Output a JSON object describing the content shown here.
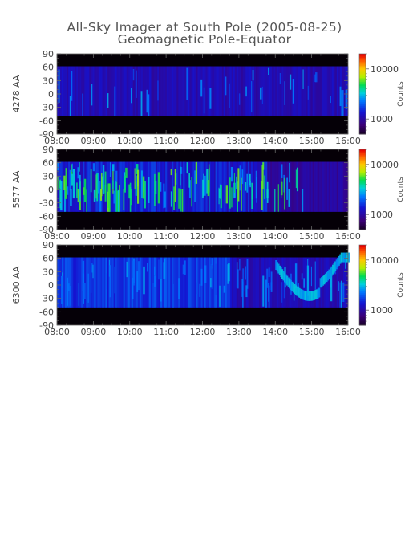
{
  "title": "All-Sky Imager at South Pole (2005-08-25)",
  "subtitle": "Geomagnetic Pole-Equator",
  "colors": {
    "background_dark": "#1a0426",
    "band_black": "#050007",
    "axis": "#444444"
  },
  "chart_data": [
    {
      "type": "heatmap",
      "ylabel": "4278 AA",
      "xlabel": "",
      "x_ticks": [
        "08:00",
        "09:00",
        "10:00",
        "11:00",
        "12:00",
        "13:00",
        "14:00",
        "15:00",
        "16:00"
      ],
      "x_range": [
        "08:00",
        "16:00"
      ],
      "y_ticks": [
        90,
        60,
        30,
        0,
        -30,
        -60,
        -90
      ],
      "ylim": [
        -90,
        90
      ],
      "data_lat_range": [
        -50,
        62
      ],
      "colorbar": {
        "title": "Counts",
        "ticks": [
          10000,
          1000
        ],
        "scale": "log",
        "range": [
          500,
          20000
        ]
      },
      "intensity": "low",
      "grid": false
    },
    {
      "type": "heatmap",
      "ylabel": "5577 AA",
      "xlabel": "",
      "x_ticks": [
        "08:00",
        "09:00",
        "10:00",
        "11:00",
        "12:00",
        "13:00",
        "14:00",
        "15:00",
        "16:00"
      ],
      "x_range": [
        "08:00",
        "16:00"
      ],
      "y_ticks": [
        90,
        60,
        30,
        0,
        -30,
        -60,
        -90
      ],
      "ylim": [
        -90,
        90
      ],
      "data_lat_range": [
        -50,
        62
      ],
      "colorbar": {
        "title": "Counts",
        "ticks": [
          10000,
          1000
        ],
        "scale": "log",
        "range": [
          500,
          20000
        ]
      },
      "intensity": "high",
      "grid": false
    },
    {
      "type": "heatmap",
      "ylabel": "6300 AA",
      "xlabel": "",
      "x_ticks": [
        "08:00",
        "09:00",
        "10:00",
        "11:00",
        "12:00",
        "13:00",
        "14:00",
        "15:00",
        "16:00"
      ],
      "x_range": [
        "08:00",
        "16:00"
      ],
      "y_ticks": [
        90,
        60,
        30,
        0,
        -30,
        -60,
        -90
      ],
      "ylim": [
        -90,
        90
      ],
      "data_lat_range": [
        -50,
        62
      ],
      "colorbar": {
        "title": "Counts",
        "ticks": [
          10000,
          1000
        ],
        "scale": "log",
        "range": [
          500,
          20000
        ]
      },
      "intensity": "medium",
      "grid": false
    }
  ]
}
